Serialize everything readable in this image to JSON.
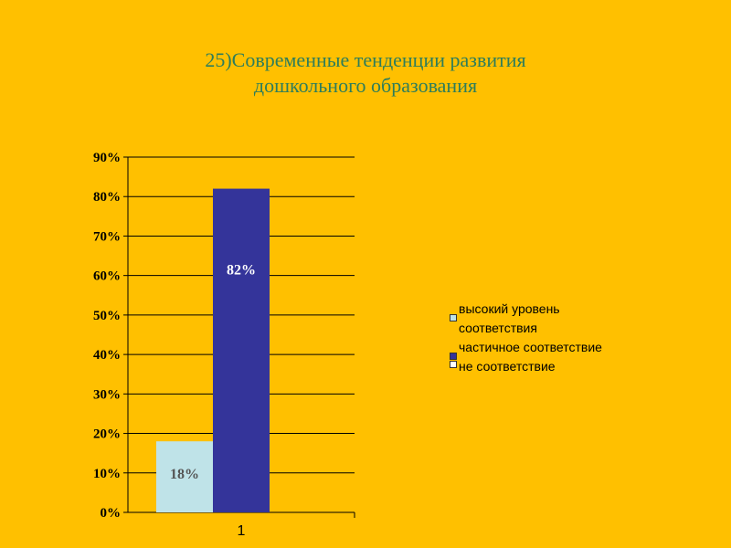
{
  "title": {
    "line1": "25)Современные тенденции развития",
    "line2": "дошкольного образования"
  },
  "chart_data": {
    "type": "bar",
    "categories": [
      "1"
    ],
    "ylim": [
      0,
      0.9
    ],
    "yticks": [
      0,
      0.1,
      0.2,
      0.3,
      0.4,
      0.5,
      0.6,
      0.7,
      0.8,
      0.9
    ],
    "ytick_labels": [
      "0%",
      "10%",
      "20%",
      "30%",
      "40%",
      "50%",
      "60%",
      "70%",
      "80%",
      "90%"
    ],
    "grid": true,
    "legend_position": "right",
    "series": [
      {
        "name": "высокий уровень соответствия",
        "values": [
          0.18
        ],
        "label": "18%",
        "color": "#BFE3E8",
        "label_color": "#555555"
      },
      {
        "name": "частичное соответствие",
        "values": [
          0.82
        ],
        "label": "82%",
        "color": "#34349A",
        "label_color": "#FFFFFF"
      },
      {
        "name": "не соответствие",
        "values": [
          0
        ],
        "label": "",
        "color": "#FFFFFF",
        "label_color": "#000000"
      }
    ]
  }
}
